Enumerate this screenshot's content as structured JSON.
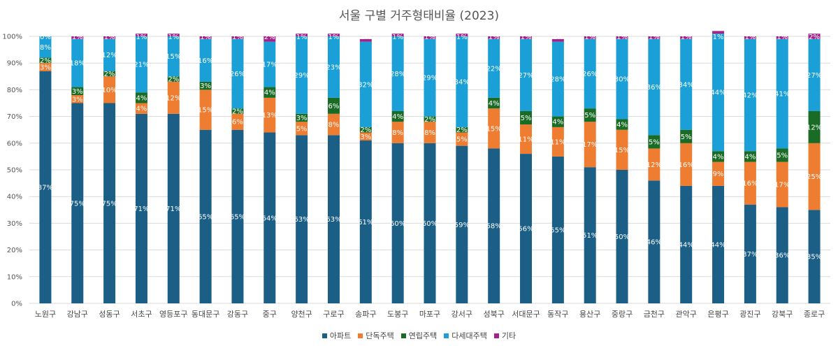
{
  "chart_data": {
    "type": "bar",
    "stacked": true,
    "title": "서울 구별 거주형태비율 (2023)",
    "ylim": [
      0,
      100
    ],
    "y_ticks": [
      "0%",
      "10%",
      "20%",
      "30%",
      "40%",
      "50%",
      "60%",
      "70%",
      "80%",
      "90%",
      "100%"
    ],
    "grid": true,
    "legend_position": "bottom",
    "categories": [
      "노원구",
      "강남구",
      "성동구",
      "서초구",
      "영등포구",
      "동대문구",
      "강동구",
      "중구",
      "양천구",
      "구로구",
      "송파구",
      "도봉구",
      "마포구",
      "강서구",
      "성북구",
      "서대문구",
      "동작구",
      "용산구",
      "중랑구",
      "금천구",
      "관악구",
      "은평구",
      "광진구",
      "강북구",
      "종로구"
    ],
    "series": [
      {
        "name": "아파트",
        "color": "#1b5e86",
        "label_color": "#ffffff",
        "values": [
          87,
          75,
          75,
          71,
          71,
          65,
          65,
          64,
          63,
          63,
          61,
          60,
          60,
          59,
          58,
          56,
          55,
          51,
          50,
          46,
          44,
          44,
          37,
          36,
          35
        ]
      },
      {
        "name": "단독주택",
        "color": "#ee7d31",
        "label_color": "#ffffff",
        "values": [
          3,
          3,
          10,
          4,
          12,
          15,
          6,
          13,
          5,
          8,
          3,
          8,
          8,
          5,
          15,
          11,
          11,
          17,
          15,
          12,
          16,
          9,
          16,
          17,
          25
        ]
      },
      {
        "name": "연립주택",
        "color": "#1a6b25",
        "label_color": "#ffffff",
        "values": [
          2,
          3,
          2,
          4,
          2,
          3,
          2,
          4,
          3,
          6,
          2,
          4,
          2,
          2,
          4,
          5,
          4,
          5,
          4,
          5,
          5,
          4,
          4,
          5,
          12
        ]
      },
      {
        "name": "다세대주택",
        "color": "#1a9fd6",
        "label_color": "#ffffff",
        "values": [
          8,
          18,
          12,
          21,
          15,
          16,
          26,
          17,
          29,
          23,
          32,
          28,
          29,
          34,
          22,
          27,
          28,
          26,
          30,
          36,
          34,
          44,
          42,
          41,
          27
        ]
      },
      {
        "name": "기타",
        "color": "#a2238a",
        "label_color": "#ffffff",
        "values": [
          0,
          1,
          1,
          1,
          1,
          1,
          1,
          2,
          1,
          1,
          1,
          1,
          1,
          1,
          1,
          1,
          1,
          1,
          1,
          1,
          1,
          1,
          1,
          1,
          2
        ]
      }
    ],
    "labels": [
      [
        "87%",
        "75%",
        "75%",
        "71%",
        "71%",
        "65%",
        "65%",
        "64%",
        "63%",
        "63%",
        "61%",
        "60%",
        "60%",
        "59%",
        "58%",
        "56%",
        "55%",
        "51%",
        "50%",
        "46%",
        "44%",
        "44%",
        "37%",
        "36%",
        "35%"
      ],
      [
        "3%",
        "3%",
        "10%",
        "4%",
        "12%",
        "15%",
        "6%",
        "13%",
        "5%",
        "8%",
        "3%",
        "8%",
        "8%",
        "5%",
        "15%",
        "11%",
        "11%",
        "17%",
        "15%",
        "12%",
        "16%",
        "9%",
        "16%",
        "17%",
        "25%"
      ],
      [
        "2%",
        "3%",
        "2%",
        "4%",
        "2%",
        "3%",
        "2%",
        "4%",
        "3%",
        "6%",
        "2%",
        "4%",
        "2%",
        "2%",
        "4%",
        "5%",
        "4%",
        "5%",
        "4%",
        "5%",
        "5%",
        "4%",
        "4%",
        "5%",
        "12%"
      ],
      [
        "8%",
        "18%",
        "12%",
        "21%",
        "15%",
        "16%",
        "26%",
        "17%",
        "29%",
        "23%",
        "32%",
        "28%",
        "29%",
        "34%",
        "22%",
        "27%",
        "28%",
        "26%",
        "30%",
        "36%",
        "34%",
        "44%",
        "42%",
        "41%",
        "27%"
      ],
      [
        "0%",
        "1%",
        "1%",
        "1%",
        "1%",
        "1%",
        "1%",
        "2%",
        "1%",
        "1%",
        "1%",
        "1%",
        "1%",
        "1%",
        "1%",
        "1%",
        "1%",
        "1%",
        "1%",
        "1%",
        "1%",
        "1%",
        "1%",
        "1%",
        "2%"
      ]
    ],
    "gridline_color": "#d9d9d9"
  }
}
